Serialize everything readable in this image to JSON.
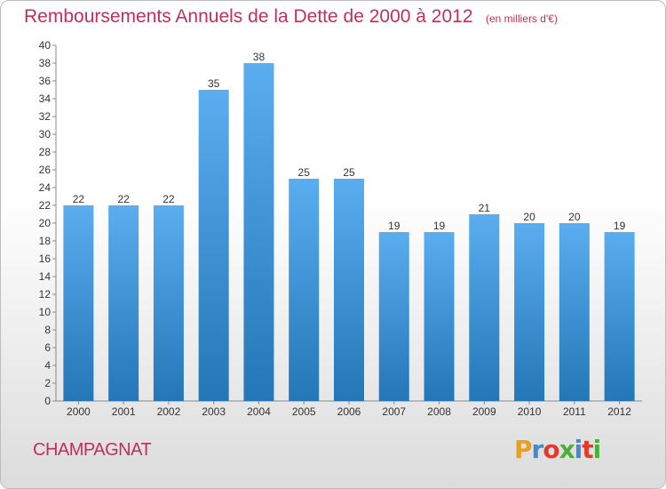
{
  "title": "Remboursements Annuels de la Dette de 2000 à 2012",
  "unit_label": "(en milliers d'€)",
  "commune": "CHAMPAGNAT",
  "logo": {
    "letters": [
      "P",
      "r",
      "o",
      "x",
      "i",
      "t",
      "i"
    ],
    "colors": [
      "#e8a020",
      "#3f8ad0",
      "#e23b2e",
      "#4caf3a",
      "#3f8ad0",
      "#e23b2e",
      "#4caf3a"
    ]
  },
  "colors": {
    "bar_top": "#5aaef0",
    "bar_bottom": "#2377b7",
    "title": "#c0305a"
  },
  "chart_data": {
    "type": "bar",
    "categories": [
      "2000",
      "2001",
      "2002",
      "2003",
      "2004",
      "2005",
      "2006",
      "2007",
      "2008",
      "2009",
      "2010",
      "2011",
      "2012"
    ],
    "values": [
      22,
      22,
      22,
      35,
      38,
      25,
      25,
      19,
      19,
      21,
      20,
      20,
      19
    ],
    "ylim": [
      0,
      40
    ],
    "ytick_step": 2,
    "grid": false,
    "data_labels": true
  }
}
